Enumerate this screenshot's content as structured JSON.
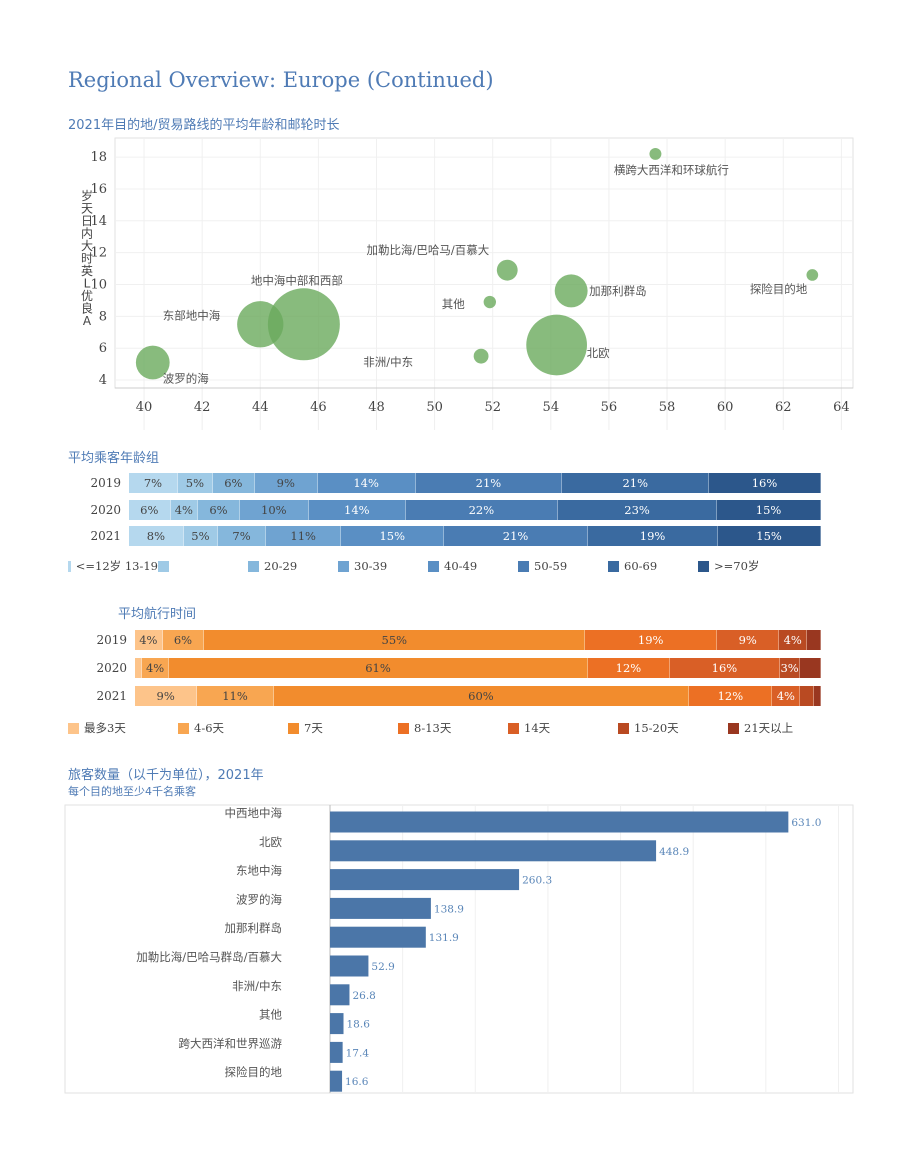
{
  "page_title": "Regional Overview: Europe (Continued)",
  "chart_data": [
    {
      "type": "scatter",
      "title": "2021年目的地/贸易路线的平均年龄和邮轮时长",
      "ylabel": "岁天日内大时英L优良A",
      "xlim": [
        39,
        64.4
      ],
      "ylim": [
        3.5,
        19.2
      ],
      "xticks": [
        40,
        42,
        44,
        46,
        48,
        50,
        52,
        54,
        56,
        58,
        60,
        62,
        64
      ],
      "yticks": [
        4,
        6,
        8,
        10,
        12,
        14,
        16,
        18
      ],
      "points": [
        {
          "label": "横跨大西洋和环球航行",
          "x": 57.6,
          "y": 18.2,
          "size": 17.4
        },
        {
          "label": "加勒比海/巴哈马/百慕大",
          "x": 52.5,
          "y": 10.9,
          "size": 52.9
        },
        {
          "label": "加那利群岛",
          "x": 54.7,
          "y": 9.6,
          "size": 131.9
        },
        {
          "label": "探险目的地",
          "x": 63.0,
          "y": 10.6,
          "size": 16.6
        },
        {
          "label": "其他",
          "x": 51.9,
          "y": 8.9,
          "size": 18.6
        },
        {
          "label": "地中海中部和西部",
          "x": 45.5,
          "y": 7.5,
          "size": 631.0
        },
        {
          "label": "东部地中海",
          "x": 44.0,
          "y": 7.5,
          "size": 260.3
        },
        {
          "label": "非洲/中东",
          "x": 51.6,
          "y": 5.5,
          "size": 26.8
        },
        {
          "label": "北欧",
          "x": 54.2,
          "y": 6.2,
          "size": 448.9
        },
        {
          "label": "波罗的海",
          "x": 40.3,
          "y": 5.1,
          "size": 138.9
        }
      ]
    },
    {
      "type": "bar",
      "stacked": true,
      "title": "平均乘客年龄组",
      "categories": [
        "2019",
        "2020",
        "2021"
      ],
      "series": [
        {
          "name": "<=12岁",
          "values": [
            7,
            6,
            8
          ]
        },
        {
          "name": "13-19",
          "values": [
            5,
            4,
            5
          ]
        },
        {
          "name": "20-29",
          "values": [
            6,
            6,
            7
          ]
        },
        {
          "name": "30-39",
          "values": [
            9,
            10,
            11
          ]
        },
        {
          "name": "40-49",
          "values": [
            14,
            14,
            15
          ]
        },
        {
          "name": "50-59",
          "values": [
            21,
            22,
            21
          ]
        },
        {
          "name": "60-69",
          "values": [
            21,
            23,
            19
          ]
        },
        {
          "name": ">=70岁",
          "values": [
            16,
            15,
            15
          ]
        }
      ],
      "legend_labels": [
        "<=12岁 13-19",
        "",
        "20-29",
        "30-39",
        "40-49",
        "50-59",
        "60-69",
        ">=70岁"
      ]
    },
    {
      "type": "bar",
      "stacked": true,
      "title": "平均航行时间",
      "categories": [
        "2019",
        "2020",
        "2021"
      ],
      "series": [
        {
          "name": "最多3天",
          "values": [
            4,
            1,
            9
          ]
        },
        {
          "name": "4-6天",
          "values": [
            6,
            4,
            11
          ]
        },
        {
          "name": "7天",
          "values": [
            55,
            61,
            60
          ]
        },
        {
          "name": "8-13天",
          "values": [
            19,
            12,
            12
          ]
        },
        {
          "name": "14天",
          "values": [
            9,
            16,
            4
          ]
        },
        {
          "name": "15-20天",
          "values": [
            4,
            3,
            2
          ]
        },
        {
          "name": "21天以上",
          "values": [
            2,
            3,
            1
          ]
        }
      ],
      "display_labels": [
        [
          "4%",
          "6%",
          "55%",
          "19%",
          "9%",
          "4%",
          ""
        ],
        [
          "",
          "4%",
          "61%",
          "12%",
          "16%",
          "3%",
          ""
        ],
        [
          "9%",
          "11%",
          "60%",
          "12%",
          "4%",
          "",
          ""
        ]
      ]
    },
    {
      "type": "bar",
      "orientation": "horizontal",
      "title": "旅客数量（以千为单位），2021年",
      "subtitle": "每个目的地至少4千名乘客",
      "xlim": [
        0,
        720
      ],
      "categories": [
        "中西地中海",
        "北欧",
        "东地中海",
        "波罗的海",
        "加那利群岛",
        "加勒比海/巴哈马群岛/百慕大",
        "非洲/中东",
        "其他",
        "跨大西洋和世界巡游",
        "探险目的地"
      ],
      "values": [
        631.0,
        448.9,
        260.3,
        138.9,
        131.9,
        52.9,
        26.8,
        18.6,
        17.4,
        16.6
      ],
      "value_labels": [
        "631.0",
        "448.9",
        "260.3",
        "138.9",
        "131.9",
        "52.9",
        "26.8",
        "18.6",
        "17.4",
        "16.6"
      ]
    }
  ],
  "colors": {
    "title": "#4f7bb5",
    "bubble": "#6aaa5c",
    "age": [
      "#b5d8ee",
      "#9fcae6",
      "#85b7dc",
      "#6fa3d1",
      "#5a8fc4",
      "#4a7cb3",
      "#3a6aa0",
      "#2c578b"
    ],
    "age_text": [
      "#444444",
      "#444444",
      "#444444",
      "#444444",
      "#ffffff",
      "#ffffff",
      "#ffffff",
      "#ffffff"
    ],
    "duration": [
      "#fdc48a",
      "#f8a651",
      "#f28c2d",
      "#ec7024",
      "#d95f26",
      "#b94a22",
      "#993720"
    ],
    "duration_text": [
      "#444444",
      "#444444",
      "#444444",
      "#ffffff",
      "#ffffff",
      "#ffffff",
      "#ffffff"
    ],
    "hbar": "#4b76a8",
    "hbar_label": "#5a86b8"
  }
}
